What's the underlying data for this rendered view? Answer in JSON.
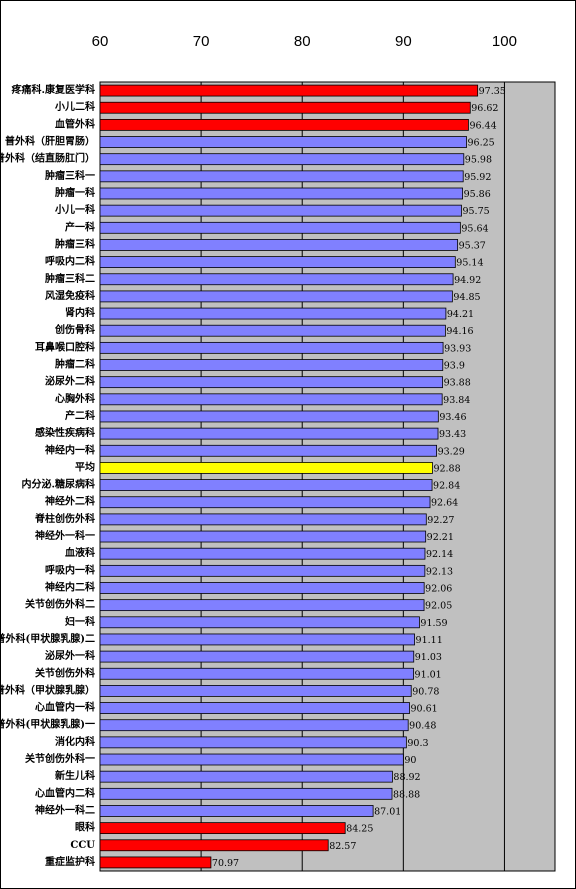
{
  "chart_data": {
    "type": "bar",
    "orientation": "horizontal",
    "categories": [
      "疼痛科.康复医学科",
      "小儿二科",
      "血管外科",
      "普外科（肝胆胃肠）",
      "普外科（结直肠肛门）",
      "肿瘤三科一",
      "肿瘤一科",
      "小儿一科",
      "产一科",
      "肿瘤三科",
      "呼吸内二科",
      "肿瘤三科二",
      "风湿免疫科",
      "肾内科",
      "创伤骨科",
      "耳鼻喉口腔科",
      "肿瘤二科",
      "泌尿外二科",
      "心胸外科",
      "产二科",
      "感染性疾病科",
      "神经内一科",
      "平均",
      "内分泌.糖尿病科",
      "神经外二科",
      "脊柱创伤外科",
      "神经外一科一",
      "血液科",
      "呼吸内一科",
      "神经内二科",
      "关节创伤外科二",
      "妇一科",
      "普外科(甲状腺乳腺)二",
      "泌尿外一科",
      "关节创伤外科",
      "普外科（甲状腺乳腺）",
      "心血管内一科",
      "普外科(甲状腺乳腺)一",
      "消化内科",
      "关节创伤外科一",
      "新生儿科",
      "心血管内二科",
      "神经外一科二",
      "眼科",
      "CCU",
      "重症监护科"
    ],
    "values": [
      97.35,
      96.62,
      96.44,
      96.25,
      95.98,
      95.92,
      95.86,
      95.75,
      95.64,
      95.37,
      95.14,
      94.92,
      94.85,
      94.21,
      94.16,
      93.93,
      93.9,
      93.88,
      93.84,
      93.46,
      93.43,
      93.29,
      92.88,
      92.84,
      92.64,
      92.27,
      92.21,
      92.14,
      92.13,
      92.06,
      92.05,
      91.59,
      91.11,
      91.03,
      91.01,
      90.78,
      90.61,
      90.48,
      90.3,
      90,
      88.92,
      88.88,
      87.01,
      84.25,
      82.57,
      70.97
    ],
    "colors": [
      "#ff0000",
      "#ff0000",
      "#ff0000",
      "#8080ff",
      "#8080ff",
      "#8080ff",
      "#8080ff",
      "#8080ff",
      "#8080ff",
      "#8080ff",
      "#8080ff",
      "#8080ff",
      "#8080ff",
      "#8080ff",
      "#8080ff",
      "#8080ff",
      "#8080ff",
      "#8080ff",
      "#8080ff",
      "#8080ff",
      "#8080ff",
      "#8080ff",
      "#ffff00",
      "#8080ff",
      "#8080ff",
      "#8080ff",
      "#8080ff",
      "#8080ff",
      "#8080ff",
      "#8080ff",
      "#8080ff",
      "#8080ff",
      "#8080ff",
      "#8080ff",
      "#8080ff",
      "#8080ff",
      "#8080ff",
      "#8080ff",
      "#8080ff",
      "#8080ff",
      "#8080ff",
      "#8080ff",
      "#8080ff",
      "#ff0000",
      "#ff0000",
      "#ff0000"
    ],
    "xlim": [
      60,
      105
    ],
    "xticks": [
      60,
      70,
      80,
      90,
      100
    ],
    "grid": true,
    "plot_background": "#c0c0c0"
  }
}
